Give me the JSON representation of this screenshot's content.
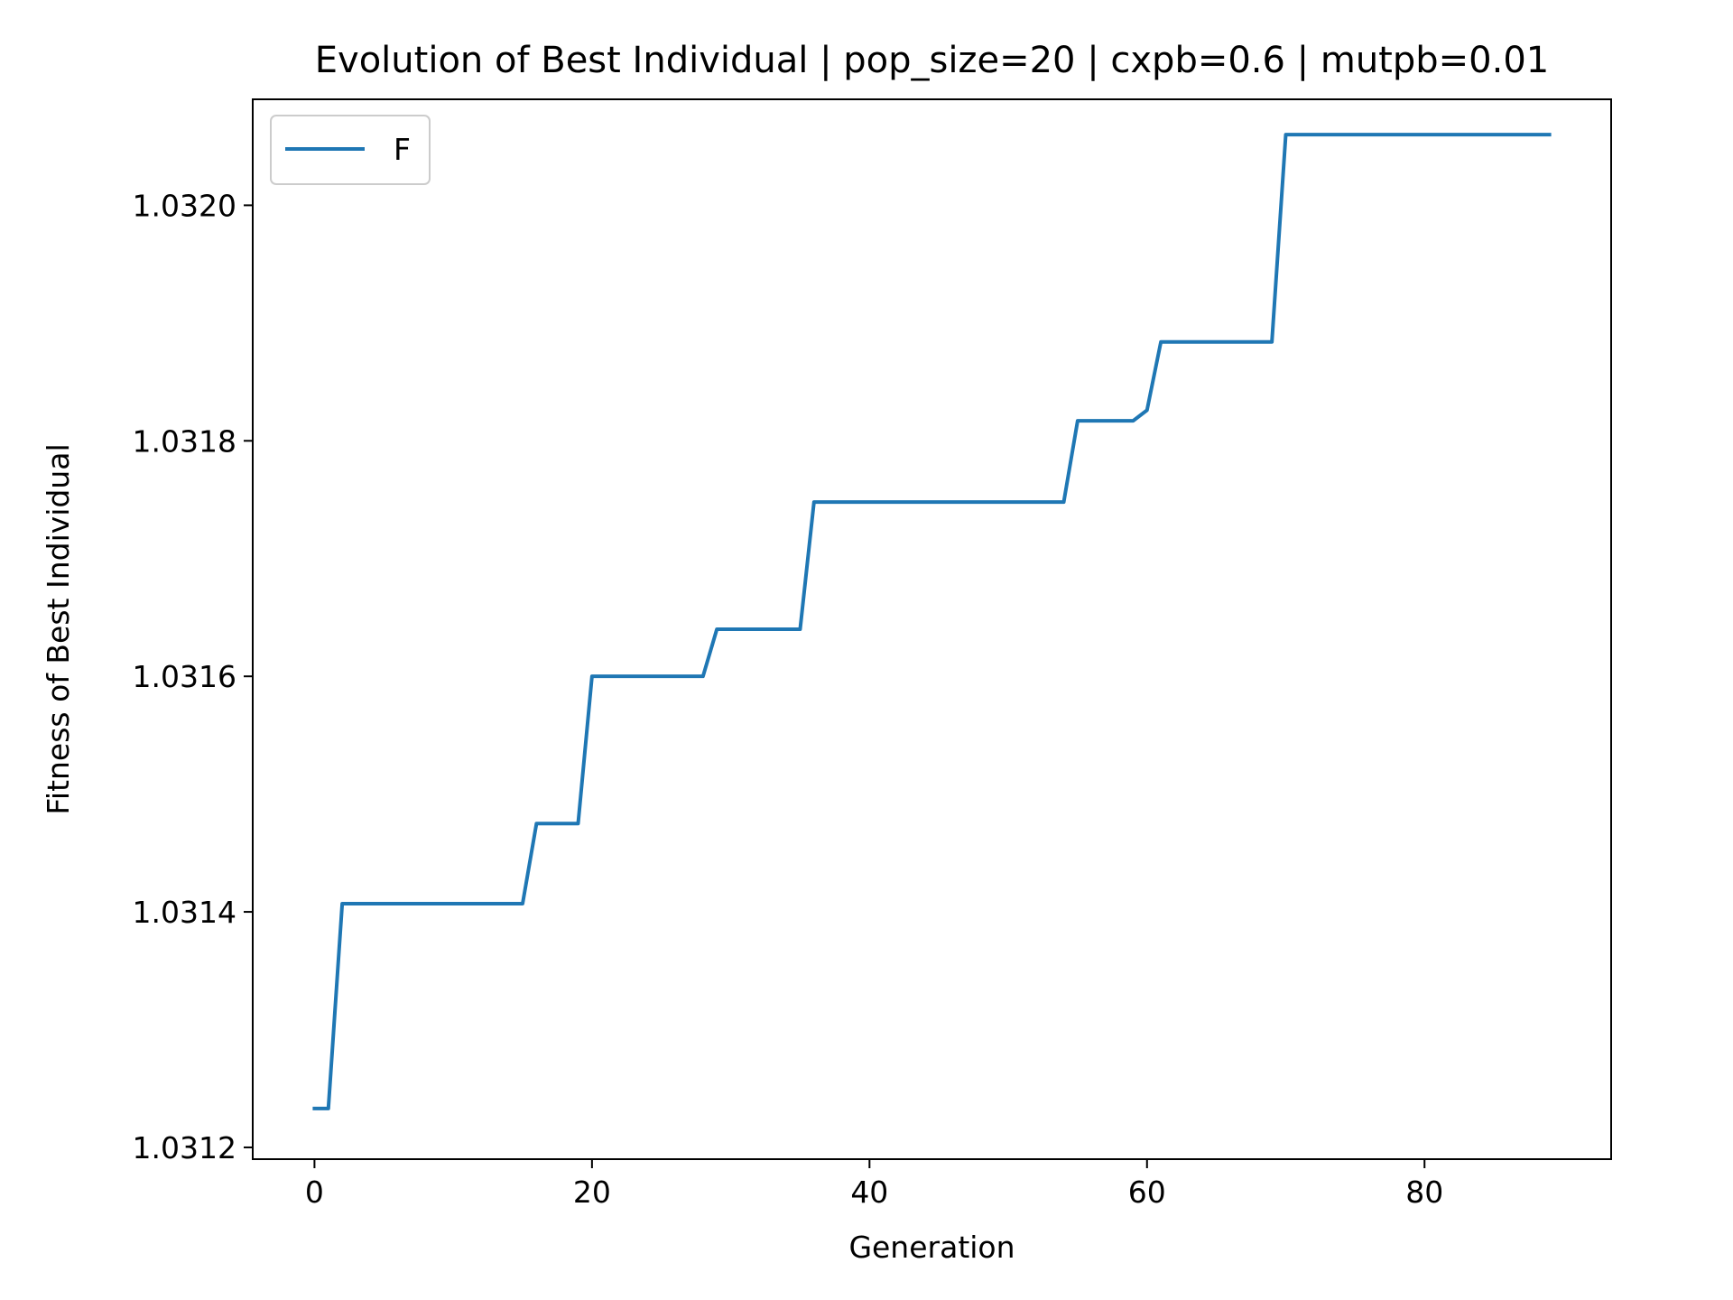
{
  "chart_data": {
    "type": "line",
    "title": "Evolution of Best Individual | pop_size=20 | cxpb=0.6 | mutpb=0.01",
    "xlabel": "Generation",
    "ylabel": "Fitness of Best Individual",
    "xlim": [
      -4.45,
      93.45
    ],
    "ylim": [
      1.03119,
      1.03209
    ],
    "xticks": [
      0,
      20,
      40,
      60,
      80
    ],
    "xtick_labels": [
      "0",
      "20",
      "40",
      "60",
      "80"
    ],
    "yticks": [
      1.0312,
      1.0314,
      1.0316,
      1.0318,
      1.032
    ],
    "ytick_labels": [
      "1.0312",
      "1.0314",
      "1.0316",
      "1.0318",
      "1.0320"
    ],
    "grid": false,
    "legend": {
      "position": "upper-left",
      "entries": [
        "F"
      ]
    },
    "series": [
      {
        "name": "F",
        "color": "#1f77b4",
        "x": [
          0,
          1,
          2,
          3,
          4,
          5,
          6,
          7,
          8,
          9,
          10,
          11,
          12,
          13,
          14,
          15,
          16,
          17,
          18,
          19,
          20,
          21,
          22,
          23,
          24,
          25,
          26,
          27,
          28,
          29,
          30,
          31,
          32,
          33,
          34,
          35,
          36,
          37,
          38,
          39,
          40,
          41,
          42,
          43,
          44,
          45,
          46,
          47,
          48,
          49,
          50,
          51,
          52,
          53,
          54,
          55,
          56,
          57,
          58,
          59,
          60,
          61,
          62,
          63,
          64,
          65,
          66,
          67,
          68,
          69,
          70,
          71,
          72,
          73,
          74,
          75,
          76,
          77,
          78,
          79,
          80,
          81,
          82,
          83,
          84,
          85,
          86,
          87,
          88,
          89
        ],
        "values": [
          1.031233,
          1.031233,
          1.031407,
          1.031407,
          1.031407,
          1.031407,
          1.031407,
          1.031407,
          1.031407,
          1.031407,
          1.031407,
          1.031407,
          1.031407,
          1.031407,
          1.031407,
          1.031407,
          1.031475,
          1.031475,
          1.031475,
          1.031475,
          1.0316,
          1.0316,
          1.0316,
          1.0316,
          1.0316,
          1.0316,
          1.0316,
          1.0316,
          1.0316,
          1.03164,
          1.03164,
          1.03164,
          1.03164,
          1.03164,
          1.03164,
          1.03164,
          1.031748,
          1.031748,
          1.031748,
          1.031748,
          1.031748,
          1.031748,
          1.031748,
          1.031748,
          1.031748,
          1.031748,
          1.031748,
          1.031748,
          1.031748,
          1.031748,
          1.031748,
          1.031748,
          1.031748,
          1.031748,
          1.031748,
          1.031817,
          1.031817,
          1.031817,
          1.031817,
          1.031817,
          1.031826,
          1.031884,
          1.031884,
          1.031884,
          1.031884,
          1.031884,
          1.031884,
          1.031884,
          1.031884,
          1.031884,
          1.03206,
          1.03206,
          1.03206,
          1.03206,
          1.03206,
          1.03206,
          1.03206,
          1.03206,
          1.03206,
          1.03206,
          1.03206,
          1.03206,
          1.03206,
          1.03206,
          1.03206,
          1.03206,
          1.03206,
          1.03206,
          1.03206,
          1.03206
        ]
      }
    ]
  }
}
